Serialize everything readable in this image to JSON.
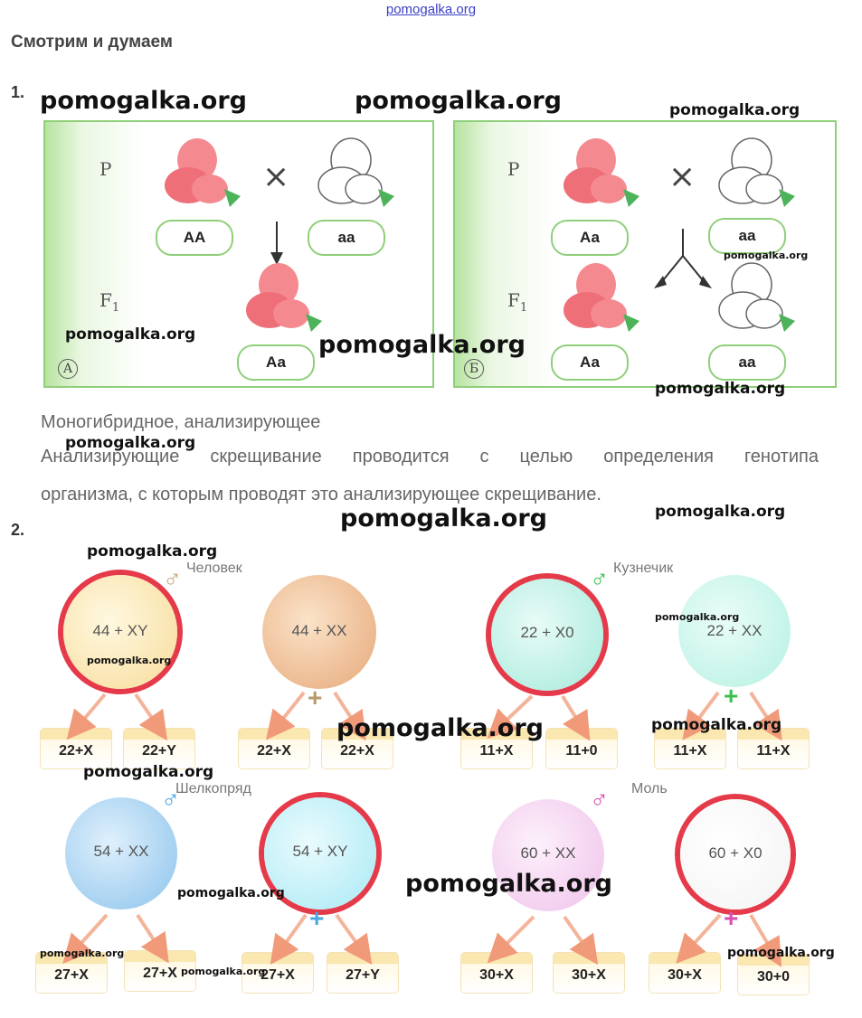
{
  "watermark": "pomogalka.org",
  "heading": "Смотрим и думаем",
  "task1": {
    "number": "1.",
    "panel_a": {
      "p_label": "P",
      "f1_label": "F",
      "f1_sub": "1",
      "parent1": "АА",
      "parent2": "аа",
      "offspring": "Аа",
      "letter": "А"
    },
    "panel_b": {
      "p_label": "P",
      "f1_label": "F",
      "f1_sub": "1",
      "parent1": "Аа",
      "parent2": "аа",
      "offspring1": "Аа",
      "offspring2": "аа",
      "letter": "Б"
    },
    "answer_type": "Моногибридное, анализирующее",
    "answer_line1": [
      "Анализирующие",
      "скрещивание",
      "проводится",
      "с",
      "целью",
      "определения",
      "генотипа"
    ],
    "answer_line2": "организма, с которым проводят это анализирующее скрещивание."
  },
  "task2": {
    "number": "2.",
    "groups": [
      {
        "species": "Человек",
        "male": {
          "formula": "44 + XY",
          "gametes": [
            "22+X",
            "22+Y"
          ]
        },
        "female": {
          "formula": "44 + XX",
          "gametes": [
            "22+X",
            "22+X"
          ]
        }
      },
      {
        "species": "Кузнечик",
        "male": {
          "formula": "22 + X0",
          "gametes": [
            "11+X",
            "11+0"
          ]
        },
        "female": {
          "formula": "22 + XX",
          "gametes": [
            "11+X",
            "11+X"
          ]
        }
      },
      {
        "species": "Шелкопряд",
        "male": {
          "formula": "54 + XX",
          "gametes": [
            "27+X",
            "27+X"
          ]
        },
        "female": {
          "formula": "54 + XY",
          "gametes": [
            "27+X",
            "27+Y"
          ]
        }
      },
      {
        "species": "Моль",
        "male": {
          "formula": "60 + XX",
          "gametes": [
            "30+X",
            "30+X"
          ]
        },
        "female": {
          "formula": "60 + X0",
          "gametes": [
            "30+X",
            "30+0"
          ]
        }
      }
    ],
    "male_symbol": "♂",
    "female_symbol": "+"
  },
  "colors": {
    "highlight_ring": "#e53a4a",
    "panel_green": "#8fcf7a",
    "male_arrow_human": "#c9a77a",
    "male_arrow_grasshopper": "#3fbf4f",
    "male_arrow_silkworm": "#4aa8e0",
    "male_arrow_moth": "#d64fb0"
  }
}
